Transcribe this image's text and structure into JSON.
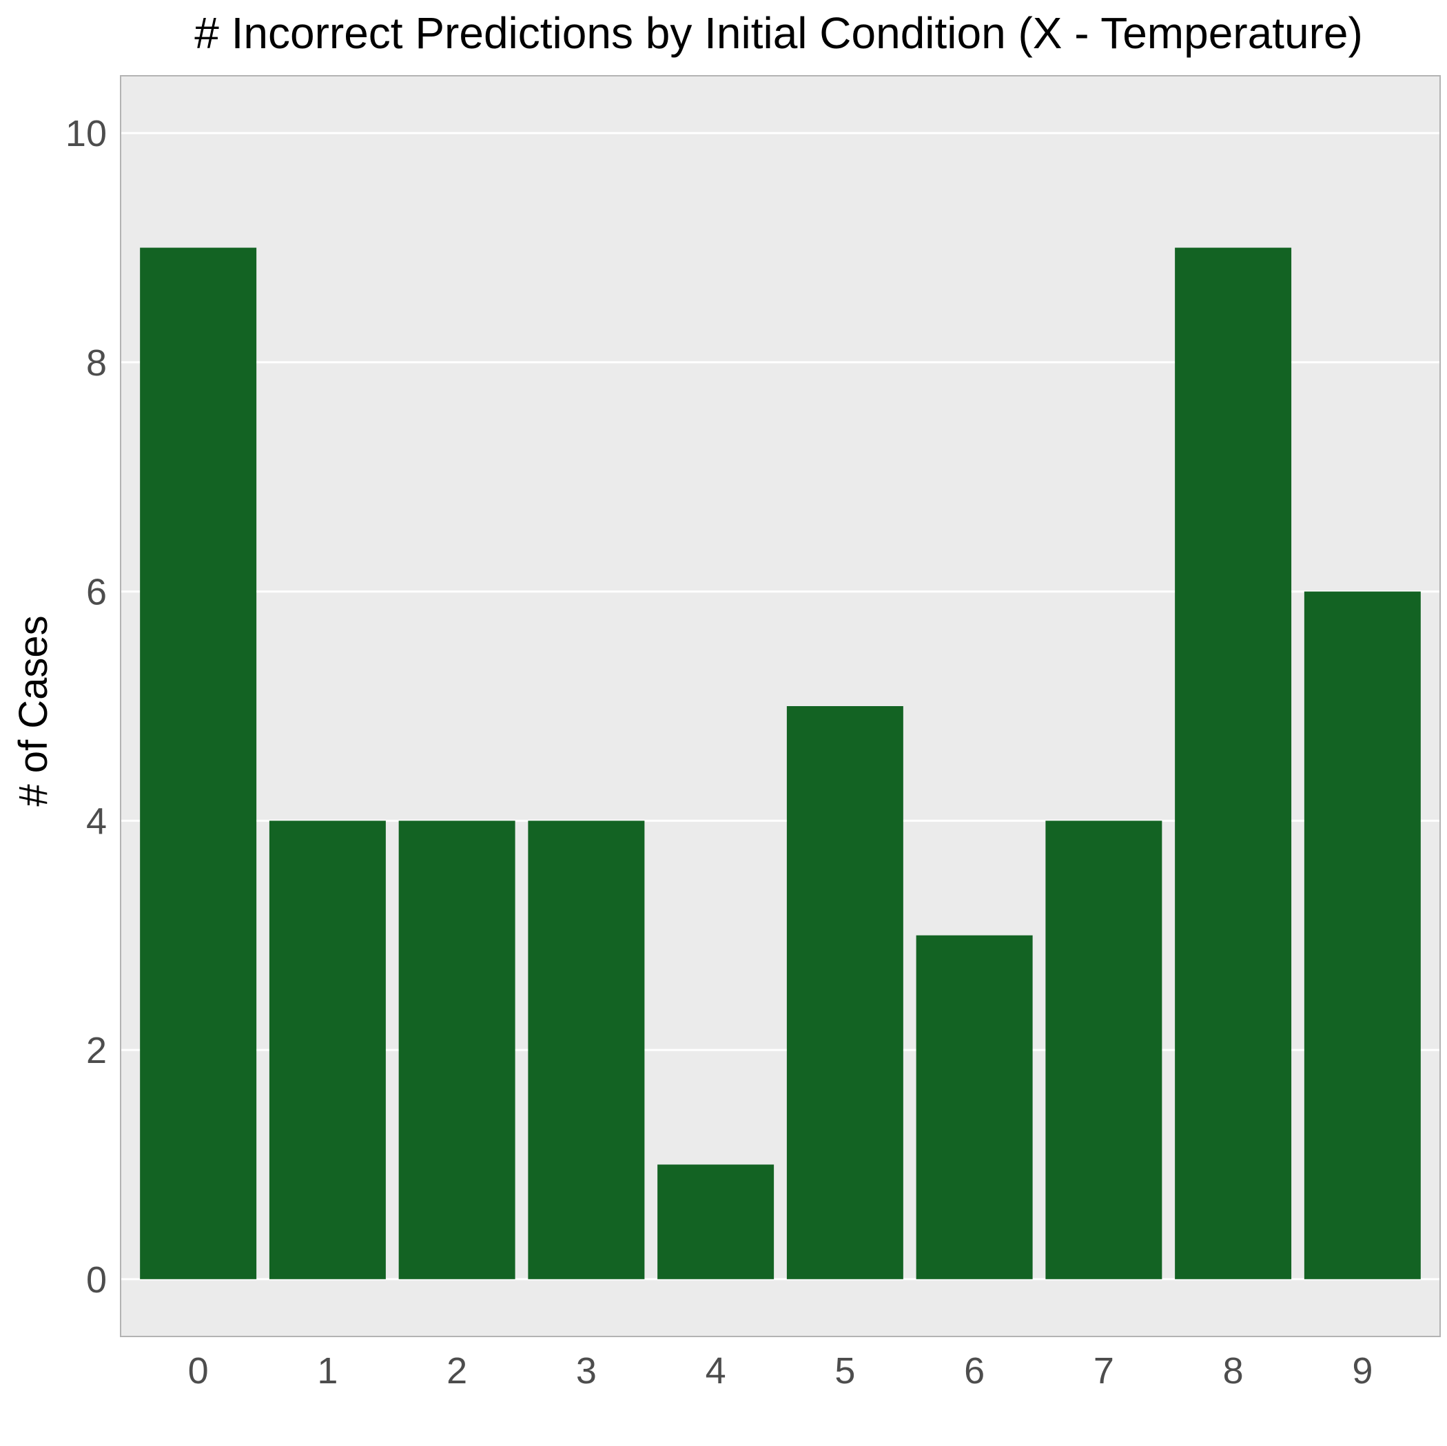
{
  "chart_data": {
    "type": "bar",
    "title": "# Incorrect Predictions by Initial Condition (X - Temperature)",
    "xlabel": "",
    "ylabel": "# of Cases",
    "categories": [
      "0",
      "1",
      "2",
      "3",
      "4",
      "5",
      "6",
      "7",
      "8",
      "9"
    ],
    "values": [
      9,
      4,
      4,
      4,
      1,
      5,
      3,
      4,
      9,
      6
    ],
    "ylim": [
      -0.5,
      10.5
    ],
    "y_ticks": [
      0,
      2,
      4,
      6,
      8,
      10
    ],
    "grid": true,
    "legend": "none",
    "colors": {
      "bar": "#136323",
      "panel_background": "#ebebeb",
      "grid": "#ffffff",
      "panel_border": "#b3b3b3"
    }
  }
}
